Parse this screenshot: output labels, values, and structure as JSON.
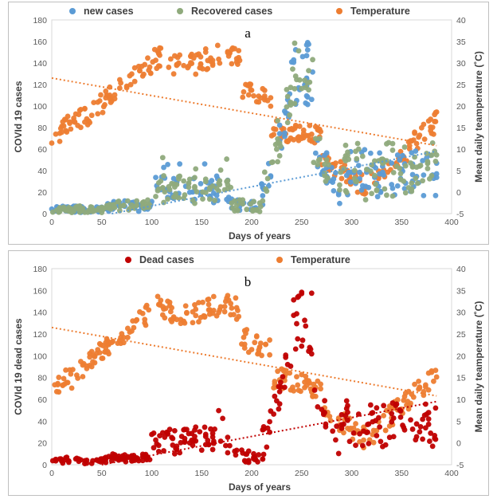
{
  "chart_data": [
    {
      "type": "scatter",
      "panel_label": "a",
      "title": "",
      "xlabel": "Days of years",
      "ylabel": "COVId 19 cases",
      "y2label": "Mean daily teamperature (˚C)",
      "xlim": [
        0,
        400
      ],
      "ylim": [
        0,
        180
      ],
      "y2lim": [
        -5,
        40
      ],
      "xticks": [
        "0",
        "50",
        "100",
        "150",
        "200",
        "250",
        "300",
        "350",
        "400"
      ],
      "yticks": [
        "0",
        "20",
        "40",
        "60",
        "80",
        "100",
        "120",
        "140",
        "160",
        "180"
      ],
      "y2ticks": [
        "-5",
        "0",
        "5",
        "10",
        "15",
        "20",
        "25",
        "30",
        "35",
        "40"
      ],
      "grid": false,
      "legend_position": "top",
      "series": [
        {
          "name": "new cases",
          "color": "#5B9BD5",
          "axis": "left",
          "key": "cases"
        },
        {
          "name": "Recovered cases",
          "color": "#8FAA7C",
          "axis": "left",
          "key": "recovered"
        },
        {
          "name": "Temperature",
          "color": "#ED7D31",
          "axis": "right",
          "key": "temp"
        }
      ],
      "trendlines": [
        {
          "series": "Temperature",
          "axis": "right",
          "color": "#ED7D31",
          "x": [
            0,
            385
          ],
          "y": [
            26.5,
            10.8
          ]
        },
        {
          "series": "new cases",
          "axis": "left",
          "color": "#5B9BD5",
          "x": [
            60,
            385
          ],
          "y": [
            0,
            58
          ]
        }
      ]
    },
    {
      "type": "scatter",
      "panel_label": "b",
      "title": "",
      "xlabel": "Days of years",
      "ylabel": "COVId 19 dead cases",
      "y2label": "Mean daily teamperature (˚C)",
      "xlim": [
        0,
        400
      ],
      "ylim": [
        0,
        180
      ],
      "y2lim": [
        -5,
        40
      ],
      "xticks": [
        "0",
        "50",
        "100",
        "150",
        "200",
        "250",
        "300",
        "350",
        "400"
      ],
      "yticks": [
        "0",
        "20",
        "40",
        "60",
        "80",
        "100",
        "120",
        "140",
        "160",
        "180"
      ],
      "y2ticks": [
        "-5",
        "0",
        "5",
        "10",
        "15",
        "20",
        "25",
        "30",
        "35",
        "40"
      ],
      "grid": false,
      "legend_position": "top",
      "series": [
        {
          "name": "Dead cases",
          "color": "#C00000",
          "axis": "left",
          "key": "cases"
        },
        {
          "name": "Temperature",
          "color": "#ED7D31",
          "axis": "right",
          "key": "temp"
        }
      ],
      "trendlines": [
        {
          "series": "Temperature",
          "axis": "right",
          "color": "#ED7D31",
          "x": [
            0,
            385
          ],
          "y": [
            26.5,
            10.8
          ]
        },
        {
          "series": "Dead cases",
          "axis": "left",
          "color": "#C00000",
          "x": [
            50,
            385
          ],
          "y": [
            0,
            58
          ]
        }
      ]
    }
  ]
}
